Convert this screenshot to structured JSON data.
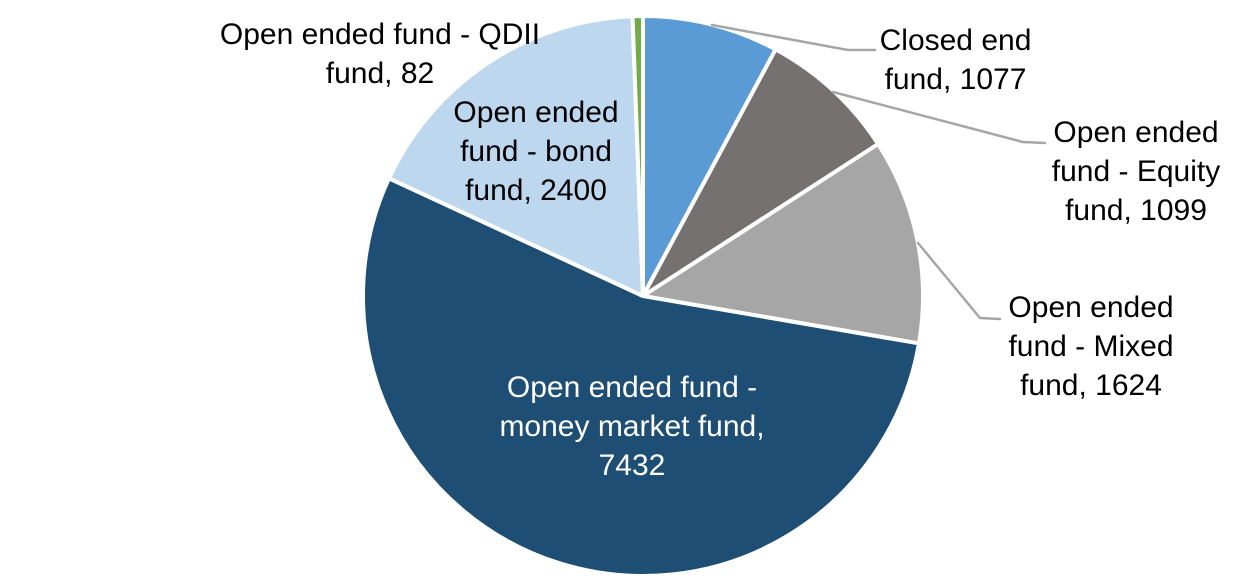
{
  "background_color": "#FFFFFF",
  "chart_data": {
    "type": "pie",
    "title": "",
    "categories": [
      "Closed end fund",
      "Open ended fund - Equity fund",
      "Open ended fund - Mixed fund",
      "Open ended fund - money market fund",
      "Open ended fund - bond fund",
      "Open ended fund - QDII fund"
    ],
    "values": [
      1077,
      1099,
      1624,
      7432,
      2400,
      82
    ],
    "total": 13714,
    "start_angle_deg": 0,
    "direction": "clockwise",
    "colors": [
      "#5B9BD5",
      "#767171",
      "#A6A6A6",
      "#1F4E74",
      "#BDD7EE",
      "#70AD47"
    ],
    "slice_border_color": "#FFFFFF",
    "leader_line_color": "#A6A6A6",
    "legend": "none",
    "labels": [
      {
        "slice": "Closed end fund",
        "text": "Closed end\nfund, 1077",
        "color": "#000000",
        "placement": "outside-right",
        "leader_line": true
      },
      {
        "slice": "Open ended fund - Equity fund",
        "text": "Open ended\nfund - Equity\nfund, 1099",
        "color": "#000000",
        "placement": "outside-right",
        "leader_line": true
      },
      {
        "slice": "Open ended fund - Mixed fund",
        "text": "Open ended\nfund - Mixed\nfund, 1624",
        "color": "#000000",
        "placement": "outside-right",
        "leader_line": true
      },
      {
        "slice": "Open ended fund - money market fund",
        "text": "Open ended fund -\nmoney market fund,\n7432",
        "color": "#FFFFFF",
        "placement": "inside",
        "leader_line": false
      },
      {
        "slice": "Open ended fund - bond fund",
        "text": "Open ended\nfund - bond\nfund, 2400",
        "color": "#000000",
        "placement": "inside",
        "leader_line": false
      },
      {
        "slice": "Open ended fund - QDII fund",
        "text": "Open ended fund - QDII\nfund, 82",
        "color": "#000000",
        "placement": "outside-left",
        "leader_line": false
      }
    ]
  }
}
